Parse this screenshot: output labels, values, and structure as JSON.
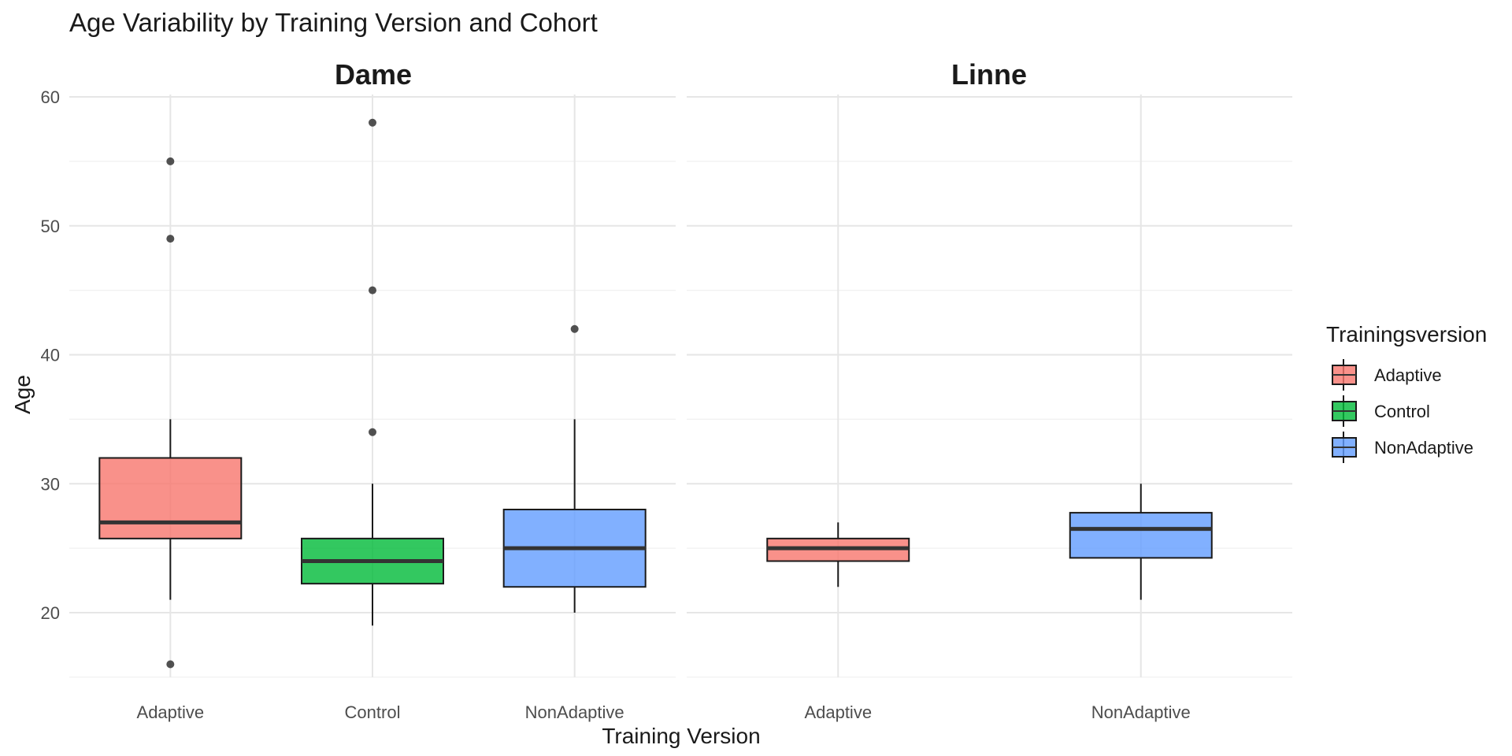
{
  "chart_data": {
    "type": "boxplot",
    "title": "Age Variability by Training Version and Cohort",
    "xlabel": "Training Version",
    "ylabel": "Age",
    "ylim": [
      14.5,
      60
    ],
    "yticks": [
      20,
      30,
      40,
      50,
      60
    ],
    "grid": true,
    "legend": {
      "title": "Trainingsversion",
      "position": "right",
      "entries": [
        {
          "label": "Adaptive",
          "color": "#F8766D"
        },
        {
          "label": "Control",
          "color": "#00BA38"
        },
        {
          "label": "NonAdaptive",
          "color": "#619CFF"
        }
      ]
    },
    "facets": [
      {
        "name": "Dame",
        "categories": [
          "Adaptive",
          "Control",
          "NonAdaptive"
        ],
        "boxes": [
          {
            "category": "Adaptive",
            "whisker_low": 21,
            "q1": 25.75,
            "median": 27,
            "q3": 32,
            "whisker_high": 35,
            "outliers": [
              55,
              49,
              16
            ]
          },
          {
            "category": "Control",
            "whisker_low": 19,
            "q1": 22.25,
            "median": 24,
            "q3": 25.75,
            "whisker_high": 30,
            "outliers": [
              58,
              45,
              34
            ]
          },
          {
            "category": "NonAdaptive",
            "whisker_low": 20,
            "q1": 22,
            "median": 25,
            "q3": 28,
            "whisker_high": 35,
            "outliers": [
              42
            ]
          }
        ]
      },
      {
        "name": "Linne",
        "categories": [
          "Adaptive",
          "NonAdaptive"
        ],
        "boxes": [
          {
            "category": "Adaptive",
            "whisker_low": 22,
            "q1": 24,
            "median": 25,
            "q3": 25.75,
            "whisker_high": 27,
            "outliers": []
          },
          {
            "category": "NonAdaptive",
            "whisker_low": 21,
            "q1": 24.25,
            "median": 26.5,
            "q3": 27.75,
            "whisker_high": 30,
            "outliers": []
          }
        ]
      }
    ]
  }
}
